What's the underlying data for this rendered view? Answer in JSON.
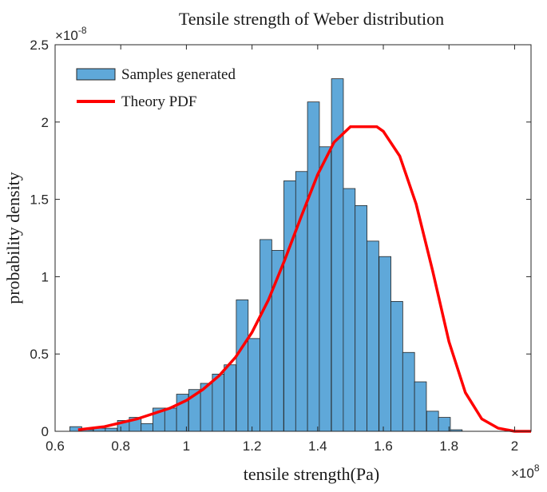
{
  "chart_data": {
    "type": "bar",
    "title": "Tensile strength of Weber distribution",
    "xlabel": "tensile strength(Pa)",
    "ylabel": "probability density",
    "x_exponent": "×10",
    "x_exponent_power": "8",
    "y_exponent": "×10",
    "y_exponent_power": "-8",
    "xlim": [
      0.6,
      2.05
    ],
    "ylim": [
      0,
      2.5
    ],
    "x_ticks": [
      0.6,
      0.8,
      1,
      1.2,
      1.4,
      1.6,
      1.8,
      2
    ],
    "x_tick_labels": [
      "0.6",
      "0.8",
      "1",
      "1.2",
      "1.4",
      "1.6",
      "1.8",
      "2"
    ],
    "y_ticks": [
      0,
      0.5,
      1,
      1.5,
      2,
      2.5
    ],
    "y_tick_labels": [
      "0",
      "0.5",
      "1",
      "1.5",
      "2",
      "2.5"
    ],
    "grid": false,
    "legend_position": "top-left",
    "bin_width": 0.0362,
    "bins": [
      {
        "x": 0.645,
        "y": 0.03
      },
      {
        "x": 0.68,
        "y": 0.01
      },
      {
        "x": 0.717,
        "y": 0.02
      },
      {
        "x": 0.753,
        "y": 0.02
      },
      {
        "x": 0.79,
        "y": 0.07
      },
      {
        "x": 0.826,
        "y": 0.09
      },
      {
        "x": 0.862,
        "y": 0.05
      },
      {
        "x": 0.898,
        "y": 0.15
      },
      {
        "x": 0.934,
        "y": 0.15
      },
      {
        "x": 0.97,
        "y": 0.24
      },
      {
        "x": 1.007,
        "y": 0.27
      },
      {
        "x": 1.043,
        "y": 0.31
      },
      {
        "x": 1.079,
        "y": 0.37
      },
      {
        "x": 1.115,
        "y": 0.43
      },
      {
        "x": 1.152,
        "y": 0.85
      },
      {
        "x": 1.188,
        "y": 0.6
      },
      {
        "x": 1.224,
        "y": 1.24
      },
      {
        "x": 1.26,
        "y": 1.17
      },
      {
        "x": 1.297,
        "y": 1.62
      },
      {
        "x": 1.333,
        "y": 1.68
      },
      {
        "x": 1.369,
        "y": 2.13
      },
      {
        "x": 1.405,
        "y": 1.84
      },
      {
        "x": 1.442,
        "y": 2.28
      },
      {
        "x": 1.478,
        "y": 1.57
      },
      {
        "x": 1.514,
        "y": 1.46
      },
      {
        "x": 1.55,
        "y": 1.23
      },
      {
        "x": 1.587,
        "y": 1.13
      },
      {
        "x": 1.623,
        "y": 0.84
      },
      {
        "x": 1.659,
        "y": 0.51
      },
      {
        "x": 1.695,
        "y": 0.32
      },
      {
        "x": 1.732,
        "y": 0.13
      },
      {
        "x": 1.768,
        "y": 0.09
      },
      {
        "x": 1.804,
        "y": 0.01
      }
    ],
    "series": [
      {
        "name": "Samples generated",
        "kind": "histogram",
        "color": "#5fa8d9"
      },
      {
        "name": "Theory PDF",
        "kind": "line",
        "color": "#ff0000",
        "x": [
          0.67,
          0.75,
          0.85,
          0.95,
          1.0,
          1.05,
          1.1,
          1.15,
          1.2,
          1.25,
          1.3,
          1.35,
          1.4,
          1.45,
          1.5,
          1.55,
          1.58,
          1.6,
          1.65,
          1.7,
          1.75,
          1.8,
          1.85,
          1.9,
          1.95,
          2.0,
          2.05
        ],
        "y": [
          0.01,
          0.03,
          0.08,
          0.15,
          0.2,
          0.27,
          0.36,
          0.48,
          0.64,
          0.85,
          1.11,
          1.39,
          1.66,
          1.87,
          1.97,
          1.97,
          1.97,
          1.94,
          1.78,
          1.47,
          1.04,
          0.58,
          0.25,
          0.08,
          0.02,
          0.0,
          0.0
        ]
      }
    ]
  }
}
